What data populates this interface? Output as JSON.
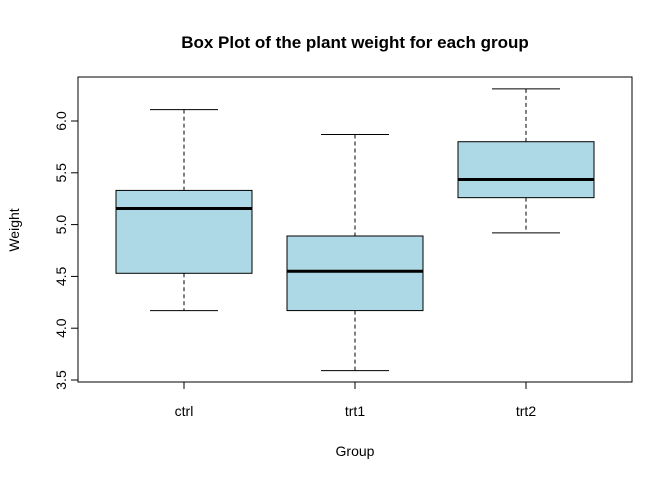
{
  "chart_data": {
    "type": "box",
    "title": "Box Plot of the plant weight for each group",
    "xlabel": "Group",
    "ylabel": "Weight",
    "ylim": [
      3.5,
      6.3
    ],
    "yticks": [
      "3.5",
      "4.0",
      "4.5",
      "5.0",
      "5.5",
      "6.0"
    ],
    "categories": [
      "ctrl",
      "trt1",
      "trt2"
    ],
    "boxes": [
      {
        "name": "ctrl",
        "min": 4.17,
        "q1": 4.53,
        "median": 5.155,
        "q3": 5.33,
        "max": 6.11
      },
      {
        "name": "trt1",
        "min": 3.59,
        "q1": 4.17,
        "median": 4.55,
        "q3": 4.89,
        "max": 5.87
      },
      {
        "name": "trt2",
        "min": 4.92,
        "q1": 5.26,
        "median": 5.435,
        "q3": 5.8,
        "max": 6.31
      }
    ],
    "box_color": "#ADD8E6",
    "grid": false
  }
}
